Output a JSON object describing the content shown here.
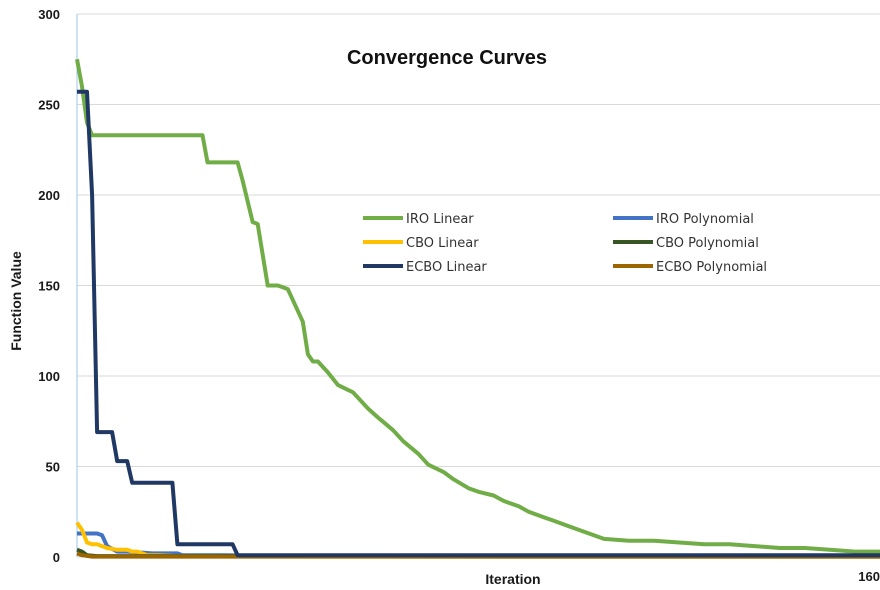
{
  "chart_data": {
    "type": "line",
    "title": "Convergence Curves",
    "xlabel": "Iteration",
    "ylabel": "Function Value",
    "xlim": [
      0,
      160
    ],
    "ylim": [
      0,
      300
    ],
    "y_ticks": [
      "0",
      "50",
      "100",
      "150",
      "200",
      "250",
      "300"
    ],
    "x_tick_label": "160",
    "grid": "horizontal",
    "legend": "center-top",
    "series": [
      {
        "name": "IRO Linear",
        "color": "#70ad47",
        "x": [
          0,
          1,
          2,
          3,
          5,
          10,
          15,
          20,
          25,
          26,
          28,
          30,
          32,
          33,
          35,
          36,
          38,
          40,
          41,
          42,
          45,
          46,
          47,
          48,
          50,
          52,
          55,
          58,
          60,
          63,
          65,
          68,
          70,
          73,
          75,
          78,
          80,
          83,
          85,
          88,
          90,
          93,
          95,
          98,
          100,
          103,
          105,
          110,
          115,
          120,
          125,
          130,
          135,
          140,
          145,
          150,
          155,
          160
        ],
        "y": [
          275,
          260,
          240,
          233,
          233,
          233,
          233,
          233,
          233,
          218,
          218,
          218,
          218,
          208,
          185,
          184,
          150,
          150,
          149,
          148,
          130,
          112,
          108,
          108,
          102,
          95,
          91,
          82,
          77,
          70,
          64,
          57,
          51,
          47,
          43,
          38,
          36,
          34,
          31,
          28,
          25,
          22,
          20,
          17,
          15,
          12,
          10,
          9,
          9,
          8,
          7,
          7,
          6,
          5,
          5,
          4,
          3,
          3
        ]
      },
      {
        "name": "IRO Polynomial",
        "color": "#4472c4",
        "x": [
          0,
          1,
          3,
          4,
          5,
          6,
          8,
          10,
          15,
          20,
          21,
          30,
          40,
          60,
          100,
          160
        ],
        "y": [
          13,
          13,
          13,
          13,
          12,
          6,
          3,
          3,
          2,
          2,
          1,
          1,
          0.5,
          0.3,
          0.2,
          0.2
        ]
      },
      {
        "name": "CBO Linear",
        "color": "#ffc000",
        "x": [
          0,
          1,
          2,
          3,
          4,
          5,
          6,
          8,
          9,
          10,
          11,
          12,
          13,
          14,
          16,
          20,
          30,
          50,
          100,
          160
        ],
        "y": [
          19,
          15,
          8,
          7,
          7,
          6,
          5,
          4,
          4,
          4,
          3,
          3,
          2,
          1,
          1,
          0.5,
          0.3,
          0.2,
          0.2,
          0.2
        ]
      },
      {
        "name": "CBO Polynomial",
        "color": "#375623",
        "x": [
          0,
          1,
          2,
          4,
          160
        ],
        "y": [
          4,
          3,
          1,
          0.5,
          0.3
        ]
      },
      {
        "name": "ECBO Linear",
        "color": "#203864",
        "x": [
          0,
          1,
          2,
          3,
          4,
          5,
          6,
          7,
          8,
          9,
          10,
          11,
          14,
          15,
          16,
          17,
          18,
          19,
          20,
          28,
          29,
          30,
          31,
          32,
          35,
          40,
          45,
          50,
          100,
          150,
          160
        ],
        "y": [
          257,
          257,
          257,
          200,
          69,
          69,
          69,
          69,
          53,
          53,
          53,
          41,
          41,
          41,
          41,
          41,
          41,
          41,
          7,
          7,
          7,
          7,
          7,
          1,
          1,
          1,
          1,
          1,
          1,
          1,
          1
        ]
      },
      {
        "name": "ECBO Polynomial",
        "color": "#9c6500",
        "x": [
          0,
          1,
          3,
          160
        ],
        "y": [
          2,
          1,
          0.2,
          0.2
        ]
      }
    ]
  }
}
